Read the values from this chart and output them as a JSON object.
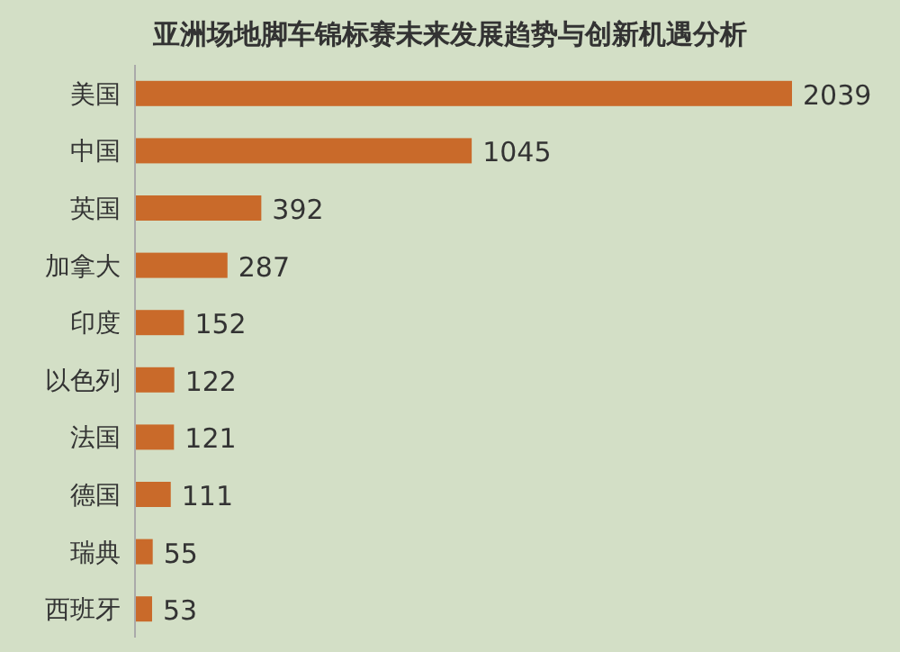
{
  "chart_data": {
    "type": "bar",
    "orientation": "horizontal",
    "title": "亚洲场地脚车锦标赛未来发展趋势与创新机遇分析",
    "categories": [
      "美国",
      "中国",
      "英国",
      "加拿大",
      "印度",
      "以色列",
      "法国",
      "德国",
      "瑞典",
      "西班牙"
    ],
    "values": [
      2039,
      1045,
      392,
      287,
      152,
      122,
      121,
      111,
      55,
      53
    ],
    "color": "#c96a2a",
    "data_labels": true
  }
}
